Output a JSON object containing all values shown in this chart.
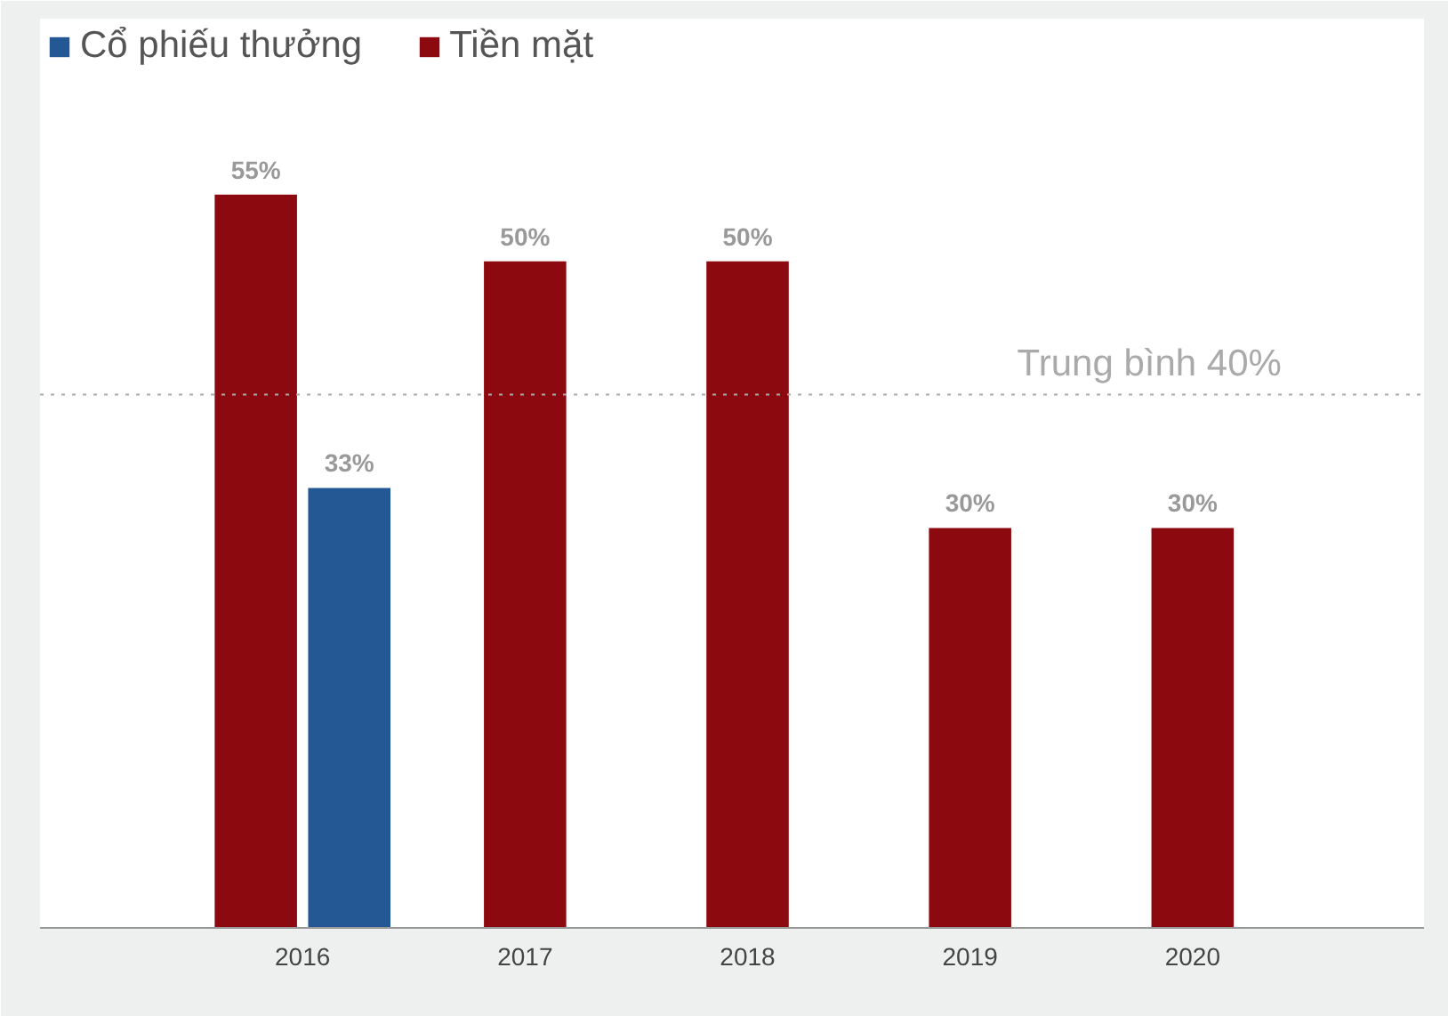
{
  "chart_data": {
    "type": "bar",
    "categories": [
      "2016",
      "2017",
      "2018",
      "2019",
      "2020"
    ],
    "series": [
      {
        "name": "Cổ phiếu thưởng",
        "color": "#235895",
        "values": [
          33,
          null,
          null,
          null,
          null
        ],
        "value_labels": [
          "33%",
          null,
          null,
          null,
          null
        ]
      },
      {
        "name": "Tiền mặt",
        "color": "#8c0a0f",
        "values": [
          55,
          50,
          50,
          30,
          30
        ],
        "value_labels": [
          "55%",
          "50%",
          "50%",
          "30%",
          "30%"
        ]
      }
    ],
    "ref_lines": [
      {
        "axis": "y",
        "value": 40,
        "label": "Trung bình 40%",
        "color": "#aaaaaa",
        "line_style": "dotted"
      }
    ],
    "legend": "top left",
    "grid": false,
    "tick_labels": "x"
  }
}
